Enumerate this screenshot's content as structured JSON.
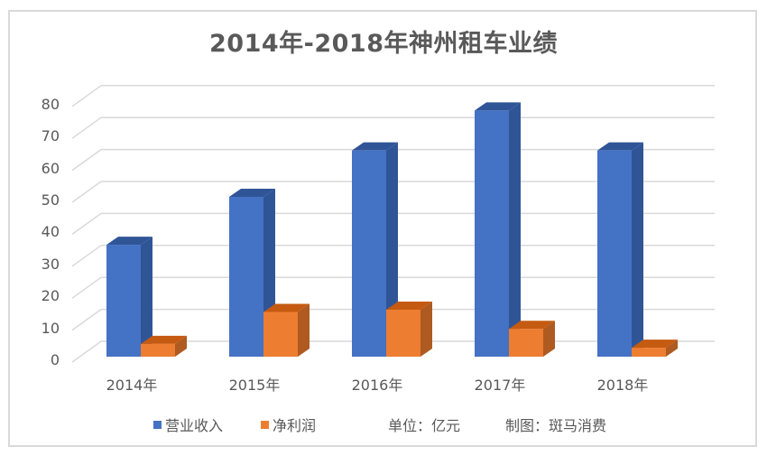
{
  "chart_data": {
    "type": "bar",
    "style": "3d-clustered-column",
    "title": "2014年-2018年神州租车业绩",
    "categories": [
      "2014年",
      "2015年",
      "2016年",
      "2017年",
      "2018年"
    ],
    "series": [
      {
        "name": "营业收入",
        "color": "#4472c4",
        "values": [
          35,
          50,
          64.5,
          77,
          64.5
        ]
      },
      {
        "name": "净利润",
        "color": "#ed7d31",
        "values": [
          4,
          14,
          14.7,
          8.7,
          2.8
        ]
      }
    ],
    "xlabel": "",
    "ylabel": "",
    "yticks": [
      "0",
      "10",
      "20",
      "30",
      "40",
      "50",
      "60",
      "70",
      "80"
    ],
    "ylim": [
      0,
      80
    ],
    "grid": true,
    "legend_position": "bottom",
    "annotations": [
      "单位：亿元",
      "制图：斑马消费"
    ]
  },
  "legend": {
    "items": [
      {
        "label": "营业收入",
        "color": "#4472c4"
      },
      {
        "label": "净利润",
        "color": "#ed7d31"
      }
    ],
    "unit_note": "单位：亿元",
    "credit_note": "制图：斑马消费"
  }
}
